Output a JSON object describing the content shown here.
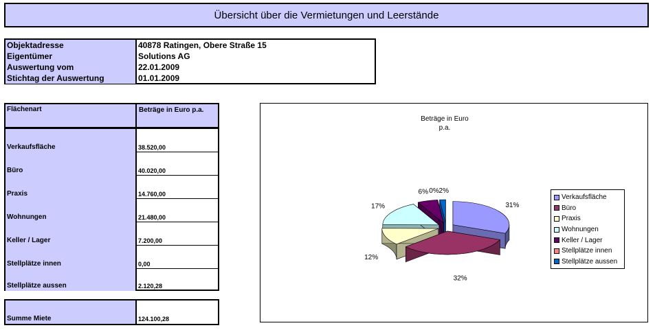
{
  "title": "Übersicht über die Vermietungen und Leerstände",
  "info": [
    {
      "label": "Objektadresse",
      "value": "40878 Ratingen, Obere Straße 15"
    },
    {
      "label": "Eigentümer",
      "value": "Solutions AG"
    },
    {
      "label": "Auswertung vom",
      "value": "22.01.2009"
    },
    {
      "label": "Stichtag der Auswertung",
      "value": "01.01.2009"
    }
  ],
  "table": {
    "header_label": "Flächenart",
    "header_value": "Beträge in Euro p.a.",
    "rows": [
      {
        "label": "Verkaufsfläche",
        "value": "38.520,00"
      },
      {
        "label": "Büro",
        "value": "40.020,00"
      },
      {
        "label": "Praxis",
        "value": "14.760,00"
      },
      {
        "label": "Wohnungen",
        "value": "21.480,00"
      },
      {
        "label": "Keller / Lager",
        "value": "7.200,00"
      },
      {
        "label": "Stellplätze innen",
        "value": "0,00"
      },
      {
        "label": "Stellplätze aussen",
        "value": "2.120,28"
      }
    ],
    "sum_label": "Summe Miete",
    "sum_value": "124.100,28"
  },
  "chart_data": {
    "type": "pie",
    "title_line1": "Beträge in Euro",
    "title_line2": "p.a.",
    "categories": [
      "Verkaufsfläche",
      "Büro",
      "Praxis",
      "Wohnungen",
      "Keller / Lager",
      "Stellplätze innen",
      "Stellplätze aussen"
    ],
    "values": [
      38520.0,
      40020.0,
      14760.0,
      21480.0,
      7200.0,
      0.0,
      2120.28
    ],
    "labels": [
      "31%",
      "32%",
      "12%",
      "17%",
      "6%",
      "0%",
      "2%"
    ],
    "colors": [
      "#9999ff",
      "#993366",
      "#ffffcc",
      "#ccffff",
      "#660066",
      "#ff8080",
      "#0066cc"
    ],
    "legend_position": "right"
  }
}
